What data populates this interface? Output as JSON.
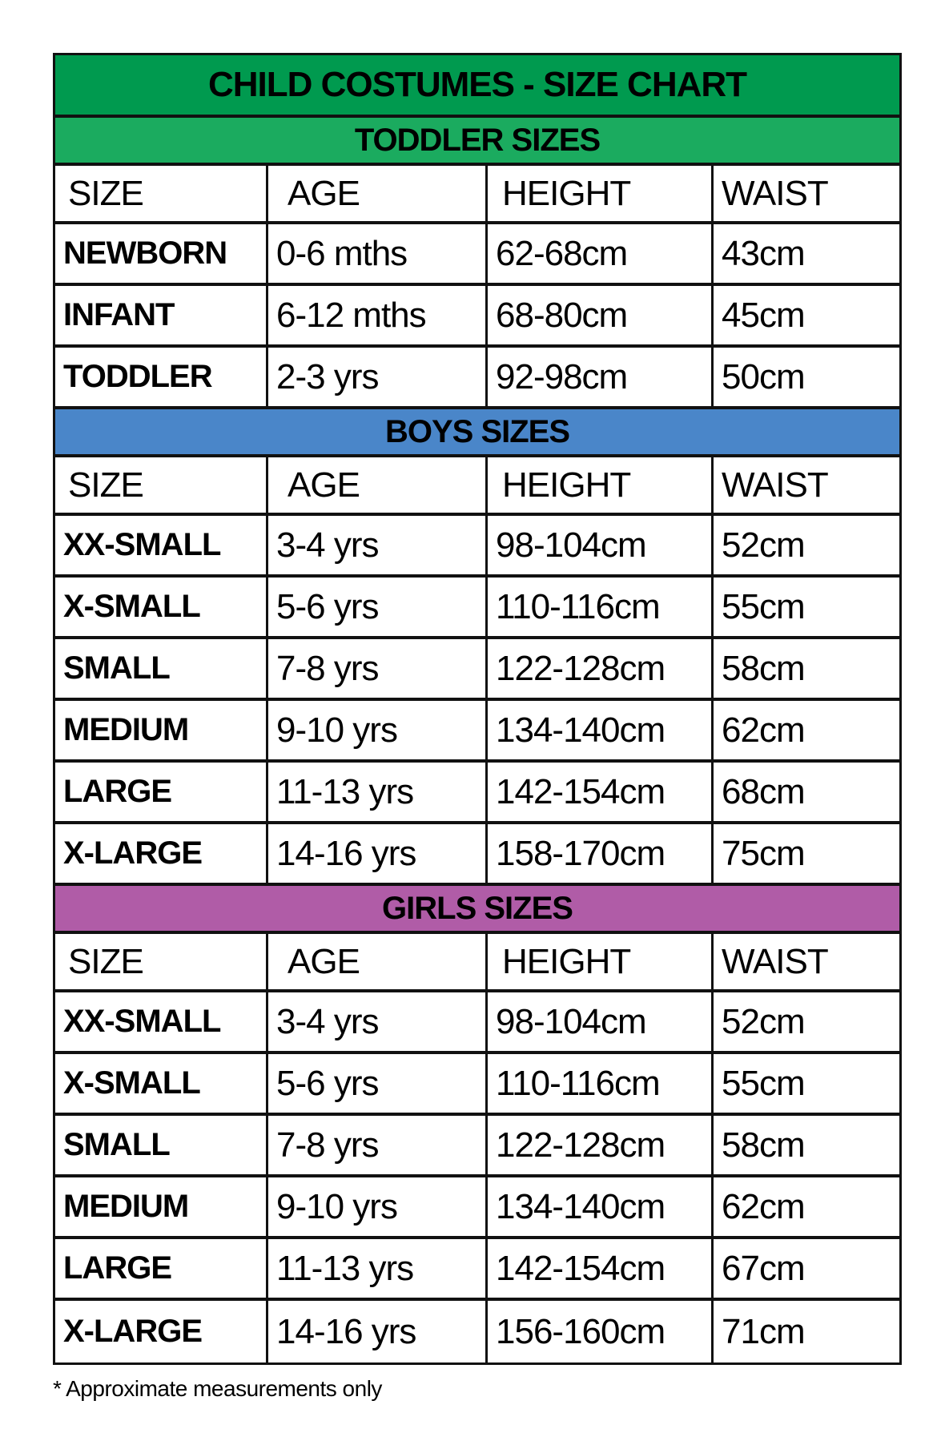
{
  "title": "CHILD COSTUMES - SIZE CHART",
  "columns": [
    "SIZE",
    "AGE",
    "HEIGHT",
    "WAIST"
  ],
  "sections": [
    {
      "name": "TODDLER SIZES",
      "color": "#1bab5f",
      "rows": [
        [
          "NEWBORN",
          "0-6 mths",
          "62-68cm",
          "43cm"
        ],
        [
          "INFANT",
          "6-12 mths",
          "68-80cm",
          "45cm"
        ],
        [
          "TODDLER",
          "2-3 yrs",
          "92-98cm",
          "50cm"
        ]
      ]
    },
    {
      "name": "BOYS SIZES",
      "color": "#4a86c9",
      "rows": [
        [
          "XX-SMALL",
          "3-4 yrs",
          "98-104cm",
          "52cm"
        ],
        [
          "X-SMALL",
          "5-6 yrs",
          "110-116cm",
          "55cm"
        ],
        [
          "SMALL",
          "7-8 yrs",
          "122-128cm",
          "58cm"
        ],
        [
          "MEDIUM",
          "9-10 yrs",
          "134-140cm",
          "62cm"
        ],
        [
          "LARGE",
          "11-13 yrs",
          "142-154cm",
          "68cm"
        ],
        [
          "X-LARGE",
          "14-16 yrs",
          "158-170cm",
          "75cm"
        ]
      ]
    },
    {
      "name": "GIRLS SIZES",
      "color": "#b05ca7",
      "rows": [
        [
          "XX-SMALL",
          "3-4 yrs",
          "98-104cm",
          "52cm"
        ],
        [
          "X-SMALL",
          "5-6 yrs",
          "110-116cm",
          "55cm"
        ],
        [
          "SMALL",
          "7-8 yrs",
          "122-128cm",
          "58cm"
        ],
        [
          "MEDIUM",
          "9-10 yrs",
          "134-140cm",
          "62cm"
        ],
        [
          "LARGE",
          "11-13 yrs",
          "142-154cm",
          "67cm"
        ],
        [
          "X-LARGE",
          "14-16 yrs",
          "156-160cm",
          "71cm"
        ]
      ]
    }
  ],
  "title_color": "#009a4f",
  "note": "* Approximate measurements only"
}
